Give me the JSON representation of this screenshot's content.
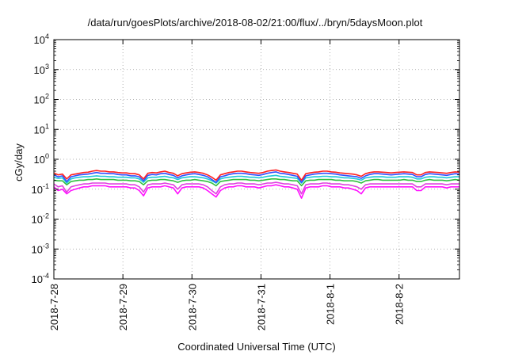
{
  "chart_data": {
    "type": "line",
    "title": "/data/run/goesPlots/archive/2018-08-02/21:00/flux/../bryn/5daysMoon.plot",
    "xlabel": "Coordinated Universal Time (UTC)",
    "ylabel": "cGy/day",
    "y_scale": "log",
    "ylim": [
      0.0001,
      10000
    ],
    "y_ticks": [
      {
        "value": 0.0001,
        "base": "10",
        "exp": "-4"
      },
      {
        "value": 0.001,
        "base": "10",
        "exp": "-3"
      },
      {
        "value": 0.01,
        "base": "10",
        "exp": "-2"
      },
      {
        "value": 0.1,
        "base": "10",
        "exp": "-1"
      },
      {
        "value": 1,
        "base": "10",
        "exp": "0"
      },
      {
        "value": 10,
        "base": "10",
        "exp": "1"
      },
      {
        "value": 100,
        "base": "10",
        "exp": "2"
      },
      {
        "value": 1000,
        "base": "10",
        "exp": "3"
      },
      {
        "value": 10000,
        "base": "10",
        "exp": "4"
      }
    ],
    "xlim": [
      "2018-07-28T00:00",
      "2018-08-02T21:00"
    ],
    "x_ticks": [
      "2018-7-28",
      "2018-7-29",
      "2018-7-30",
      "2018-7-31",
      "2018-8-1",
      "2018-8-2"
    ],
    "grid": true,
    "series": [
      {
        "color": "#ff2020",
        "level": 0.35,
        "values": [
          0.35,
          0.3,
          0.32,
          0.22,
          0.3,
          0.32,
          0.34,
          0.36,
          0.37,
          0.4,
          0.42,
          0.4,
          0.4,
          0.38,
          0.38,
          0.36,
          0.35,
          0.35,
          0.33,
          0.33,
          0.3,
          0.22,
          0.34,
          0.36,
          0.35,
          0.38,
          0.4,
          0.36,
          0.34,
          0.28,
          0.33,
          0.35,
          0.37,
          0.38,
          0.36,
          0.34,
          0.3,
          0.25,
          0.2,
          0.3,
          0.33,
          0.36,
          0.38,
          0.4,
          0.4,
          0.38,
          0.36,
          0.35,
          0.34,
          0.36,
          0.4,
          0.42,
          0.44,
          0.4,
          0.38,
          0.36,
          0.34,
          0.32,
          0.2,
          0.33,
          0.35,
          0.37,
          0.38,
          0.4,
          0.4,
          0.38,
          0.37,
          0.35,
          0.34,
          0.33,
          0.32,
          0.3,
          0.27,
          0.33,
          0.36,
          0.38,
          0.38,
          0.37,
          0.36,
          0.35,
          0.36,
          0.37,
          0.38,
          0.37,
          0.36,
          0.3,
          0.3,
          0.36,
          0.38,
          0.37,
          0.36,
          0.35,
          0.34,
          0.36,
          0.38,
          0.37
        ]
      },
      {
        "color": "#3050ff",
        "level": 0.3,
        "values": [
          0.3,
          0.26,
          0.28,
          0.18,
          0.26,
          0.28,
          0.3,
          0.31,
          0.32,
          0.34,
          0.36,
          0.34,
          0.34,
          0.33,
          0.33,
          0.31,
          0.3,
          0.3,
          0.28,
          0.28,
          0.26,
          0.19,
          0.29,
          0.31,
          0.3,
          0.33,
          0.34,
          0.31,
          0.29,
          0.24,
          0.28,
          0.3,
          0.32,
          0.33,
          0.31,
          0.29,
          0.26,
          0.21,
          0.17,
          0.26,
          0.28,
          0.31,
          0.33,
          0.34,
          0.34,
          0.33,
          0.31,
          0.3,
          0.29,
          0.31,
          0.34,
          0.36,
          0.38,
          0.34,
          0.33,
          0.31,
          0.29,
          0.27,
          0.17,
          0.28,
          0.3,
          0.32,
          0.33,
          0.34,
          0.34,
          0.33,
          0.32,
          0.3,
          0.29,
          0.28,
          0.27,
          0.26,
          0.23,
          0.28,
          0.31,
          0.33,
          0.33,
          0.32,
          0.31,
          0.3,
          0.31,
          0.32,
          0.33,
          0.32,
          0.31,
          0.26,
          0.26,
          0.31,
          0.33,
          0.32,
          0.31,
          0.3,
          0.29,
          0.31,
          0.33,
          0.32
        ]
      },
      {
        "color": "#20c8d8",
        "level": 0.25,
        "values": [
          0.25,
          0.23,
          0.24,
          0.16,
          0.22,
          0.24,
          0.25,
          0.26,
          0.26,
          0.27,
          0.28,
          0.27,
          0.27,
          0.26,
          0.26,
          0.25,
          0.25,
          0.25,
          0.24,
          0.24,
          0.22,
          0.17,
          0.24,
          0.25,
          0.25,
          0.26,
          0.27,
          0.25,
          0.24,
          0.21,
          0.24,
          0.25,
          0.26,
          0.26,
          0.25,
          0.24,
          0.22,
          0.19,
          0.16,
          0.22,
          0.24,
          0.25,
          0.26,
          0.27,
          0.27,
          0.26,
          0.25,
          0.25,
          0.24,
          0.25,
          0.27,
          0.28,
          0.29,
          0.27,
          0.26,
          0.25,
          0.24,
          0.23,
          0.16,
          0.24,
          0.25,
          0.26,
          0.26,
          0.27,
          0.27,
          0.26,
          0.26,
          0.25,
          0.24,
          0.24,
          0.23,
          0.22,
          0.2,
          0.24,
          0.25,
          0.26,
          0.26,
          0.26,
          0.25,
          0.25,
          0.25,
          0.26,
          0.26,
          0.26,
          0.25,
          0.22,
          0.22,
          0.25,
          0.26,
          0.26,
          0.25,
          0.25,
          0.24,
          0.25,
          0.26,
          0.26
        ]
      },
      {
        "color": "#30c040",
        "level": 0.2,
        "values": [
          0.2,
          0.19,
          0.19,
          0.14,
          0.18,
          0.19,
          0.2,
          0.2,
          0.21,
          0.21,
          0.22,
          0.21,
          0.21,
          0.21,
          0.21,
          0.2,
          0.2,
          0.2,
          0.19,
          0.19,
          0.18,
          0.14,
          0.19,
          0.2,
          0.2,
          0.21,
          0.21,
          0.2,
          0.19,
          0.17,
          0.19,
          0.2,
          0.2,
          0.21,
          0.2,
          0.19,
          0.18,
          0.16,
          0.13,
          0.18,
          0.19,
          0.2,
          0.21,
          0.21,
          0.21,
          0.21,
          0.2,
          0.2,
          0.19,
          0.2,
          0.21,
          0.22,
          0.22,
          0.21,
          0.21,
          0.2,
          0.19,
          0.19,
          0.13,
          0.19,
          0.2,
          0.2,
          0.21,
          0.21,
          0.21,
          0.21,
          0.2,
          0.2,
          0.19,
          0.19,
          0.19,
          0.18,
          0.16,
          0.19,
          0.2,
          0.21,
          0.21,
          0.2,
          0.2,
          0.2,
          0.2,
          0.2,
          0.21,
          0.2,
          0.2,
          0.18,
          0.18,
          0.2,
          0.21,
          0.2,
          0.2,
          0.2,
          0.19,
          0.2,
          0.21,
          0.2
        ]
      },
      {
        "color": "#e040e0",
        "level": 0.15,
        "values": [
          0.15,
          0.12,
          0.13,
          0.08,
          0.12,
          0.13,
          0.14,
          0.15,
          0.15,
          0.16,
          0.16,
          0.16,
          0.16,
          0.15,
          0.15,
          0.15,
          0.15,
          0.15,
          0.14,
          0.14,
          0.12,
          0.08,
          0.14,
          0.15,
          0.15,
          0.15,
          0.16,
          0.15,
          0.14,
          0.1,
          0.14,
          0.15,
          0.15,
          0.15,
          0.15,
          0.14,
          0.12,
          0.09,
          0.07,
          0.12,
          0.14,
          0.15,
          0.15,
          0.16,
          0.16,
          0.15,
          0.15,
          0.15,
          0.14,
          0.15,
          0.16,
          0.16,
          0.17,
          0.16,
          0.15,
          0.15,
          0.14,
          0.13,
          0.07,
          0.14,
          0.15,
          0.15,
          0.15,
          0.16,
          0.16,
          0.15,
          0.15,
          0.15,
          0.14,
          0.14,
          0.13,
          0.12,
          0.1,
          0.14,
          0.15,
          0.15,
          0.15,
          0.15,
          0.15,
          0.15,
          0.15,
          0.15,
          0.15,
          0.15,
          0.15,
          0.12,
          0.12,
          0.15,
          0.15,
          0.15,
          0.15,
          0.15,
          0.14,
          0.15,
          0.15,
          0.15
        ]
      },
      {
        "color": "#ff10ff",
        "level": 0.12,
        "values": [
          0.12,
          0.09,
          0.1,
          0.07,
          0.09,
          0.1,
          0.11,
          0.12,
          0.12,
          0.13,
          0.13,
          0.13,
          0.13,
          0.12,
          0.12,
          0.12,
          0.12,
          0.12,
          0.11,
          0.11,
          0.09,
          0.06,
          0.11,
          0.12,
          0.12,
          0.12,
          0.13,
          0.12,
          0.11,
          0.07,
          0.11,
          0.12,
          0.12,
          0.12,
          0.12,
          0.11,
          0.09,
          0.07,
          0.055,
          0.09,
          0.11,
          0.12,
          0.12,
          0.13,
          0.13,
          0.12,
          0.12,
          0.12,
          0.11,
          0.12,
          0.13,
          0.13,
          0.14,
          0.13,
          0.12,
          0.12,
          0.11,
          0.1,
          0.05,
          0.11,
          0.12,
          0.12,
          0.12,
          0.13,
          0.13,
          0.12,
          0.12,
          0.12,
          0.11,
          0.11,
          0.1,
          0.09,
          0.07,
          0.11,
          0.12,
          0.12,
          0.12,
          0.12,
          0.12,
          0.12,
          0.12,
          0.12,
          0.12,
          0.12,
          0.12,
          0.09,
          0.09,
          0.12,
          0.12,
          0.12,
          0.12,
          0.12,
          0.11,
          0.12,
          0.12,
          0.12
        ]
      }
    ]
  }
}
